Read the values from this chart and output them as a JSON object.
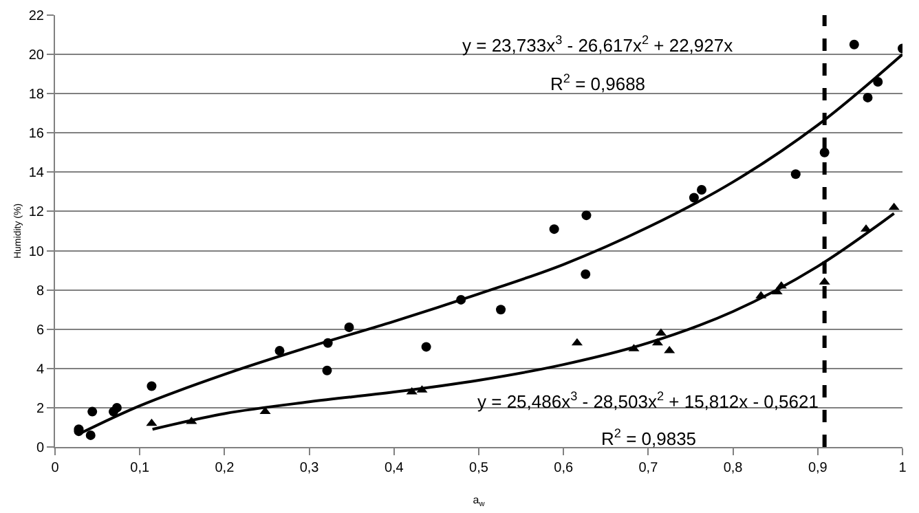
{
  "chart_data": {
    "type": "scatter",
    "xlabel": "a$_{w}$",
    "ylabel": "Humidity (%)",
    "xlim": [
      0,
      1
    ],
    "xticks": [
      0,
      {
        "value": 0.1,
        "label": "0,1"
      },
      {
        "value": 0.2,
        "label": "0,2"
      },
      {
        "value": 0.3,
        "label": "0,3"
      },
      {
        "value": 0.4,
        "label": "0,4"
      },
      {
        "value": 0.5,
        "label": "0,5"
      },
      {
        "value": 0.6,
        "label": "0,6"
      },
      {
        "value": 0.7,
        "label": "0,7"
      },
      {
        "value": 0.8,
        "label": "0,8"
      },
      {
        "value": 0.9,
        "label": "0,9"
      },
      1
    ],
    "ylim": [
      0,
      22
    ],
    "yticks": [
      0,
      2,
      4,
      6,
      8,
      10,
      12,
      14,
      16,
      18,
      20,
      22
    ],
    "grid": "y",
    "legend": false,
    "series": [
      {
        "marker": "circle",
        "color": "#000000",
        "x": [
          0.028,
          0.028,
          0.042,
          0.044,
          0.069,
          0.073,
          0.114,
          0.265,
          0.321,
          0.322,
          0.347,
          0.438,
          0.479,
          0.526,
          0.589,
          0.626,
          0.627,
          0.754,
          0.763,
          0.874,
          0.908,
          0.943,
          0.959,
          0.971,
          1.0
        ],
        "values": [
          0.9,
          0.8,
          0.6,
          1.8,
          1.8,
          2.0,
          3.1,
          4.9,
          3.9,
          5.3,
          6.1,
          5.1,
          7.5,
          7.0,
          11.1,
          8.8,
          11.8,
          12.7,
          13.1,
          13.9,
          15.0,
          20.5,
          17.8,
          18.6,
          20.3
        ]
      },
      {
        "marker": "triangle",
        "color": "#000000",
        "x": [
          0.114,
          0.161,
          0.248,
          0.421,
          0.433,
          0.616,
          0.683,
          0.711,
          0.715,
          0.725,
          0.833,
          0.852,
          0.857,
          0.908,
          0.957,
          0.99
        ],
        "values": [
          1.2,
          1.3,
          1.8,
          2.8,
          2.9,
          5.3,
          5.0,
          5.3,
          5.8,
          4.9,
          7.7,
          7.9,
          8.2,
          8.4,
          11.1,
          12.2
        ]
      },
      {
        "type": "line",
        "marker": "none",
        "color": "#000000",
        "x": [
          0.03,
          0.1,
          0.2,
          0.3,
          0.4,
          0.5,
          0.6,
          0.7,
          0.8,
          0.9,
          1.0
        ],
        "values": [
          0.7,
          2.1,
          3.7,
          5.1,
          6.4,
          7.8,
          9.3,
          11.2,
          13.5,
          16.4,
          20.0
        ]
      },
      {
        "type": "line",
        "marker": "none",
        "color": "#000000",
        "x": [
          0.115,
          0.2,
          0.3,
          0.4,
          0.5,
          0.6,
          0.7,
          0.8,
          0.9,
          0.99
        ],
        "values": [
          0.9,
          1.7,
          2.3,
          2.8,
          3.4,
          4.2,
          5.3,
          6.9,
          9.2,
          11.9
        ]
      }
    ],
    "ref_lines": [
      {
        "axis": "x",
        "value": 0.908,
        "color": "#000000",
        "line_style": "dashed"
      }
    ],
    "annotations": [
      "y = 23,733x$^{3}$ - 26,617x$^{2}$ + 22,927x",
      "R$^{2}$ = 0,9688",
      "y = 25,486x$^{3}$ - 28,503x$^{2}$ + 15,812x - 0,5621",
      "R$^{2}$ = 0,9835"
    ]
  }
}
